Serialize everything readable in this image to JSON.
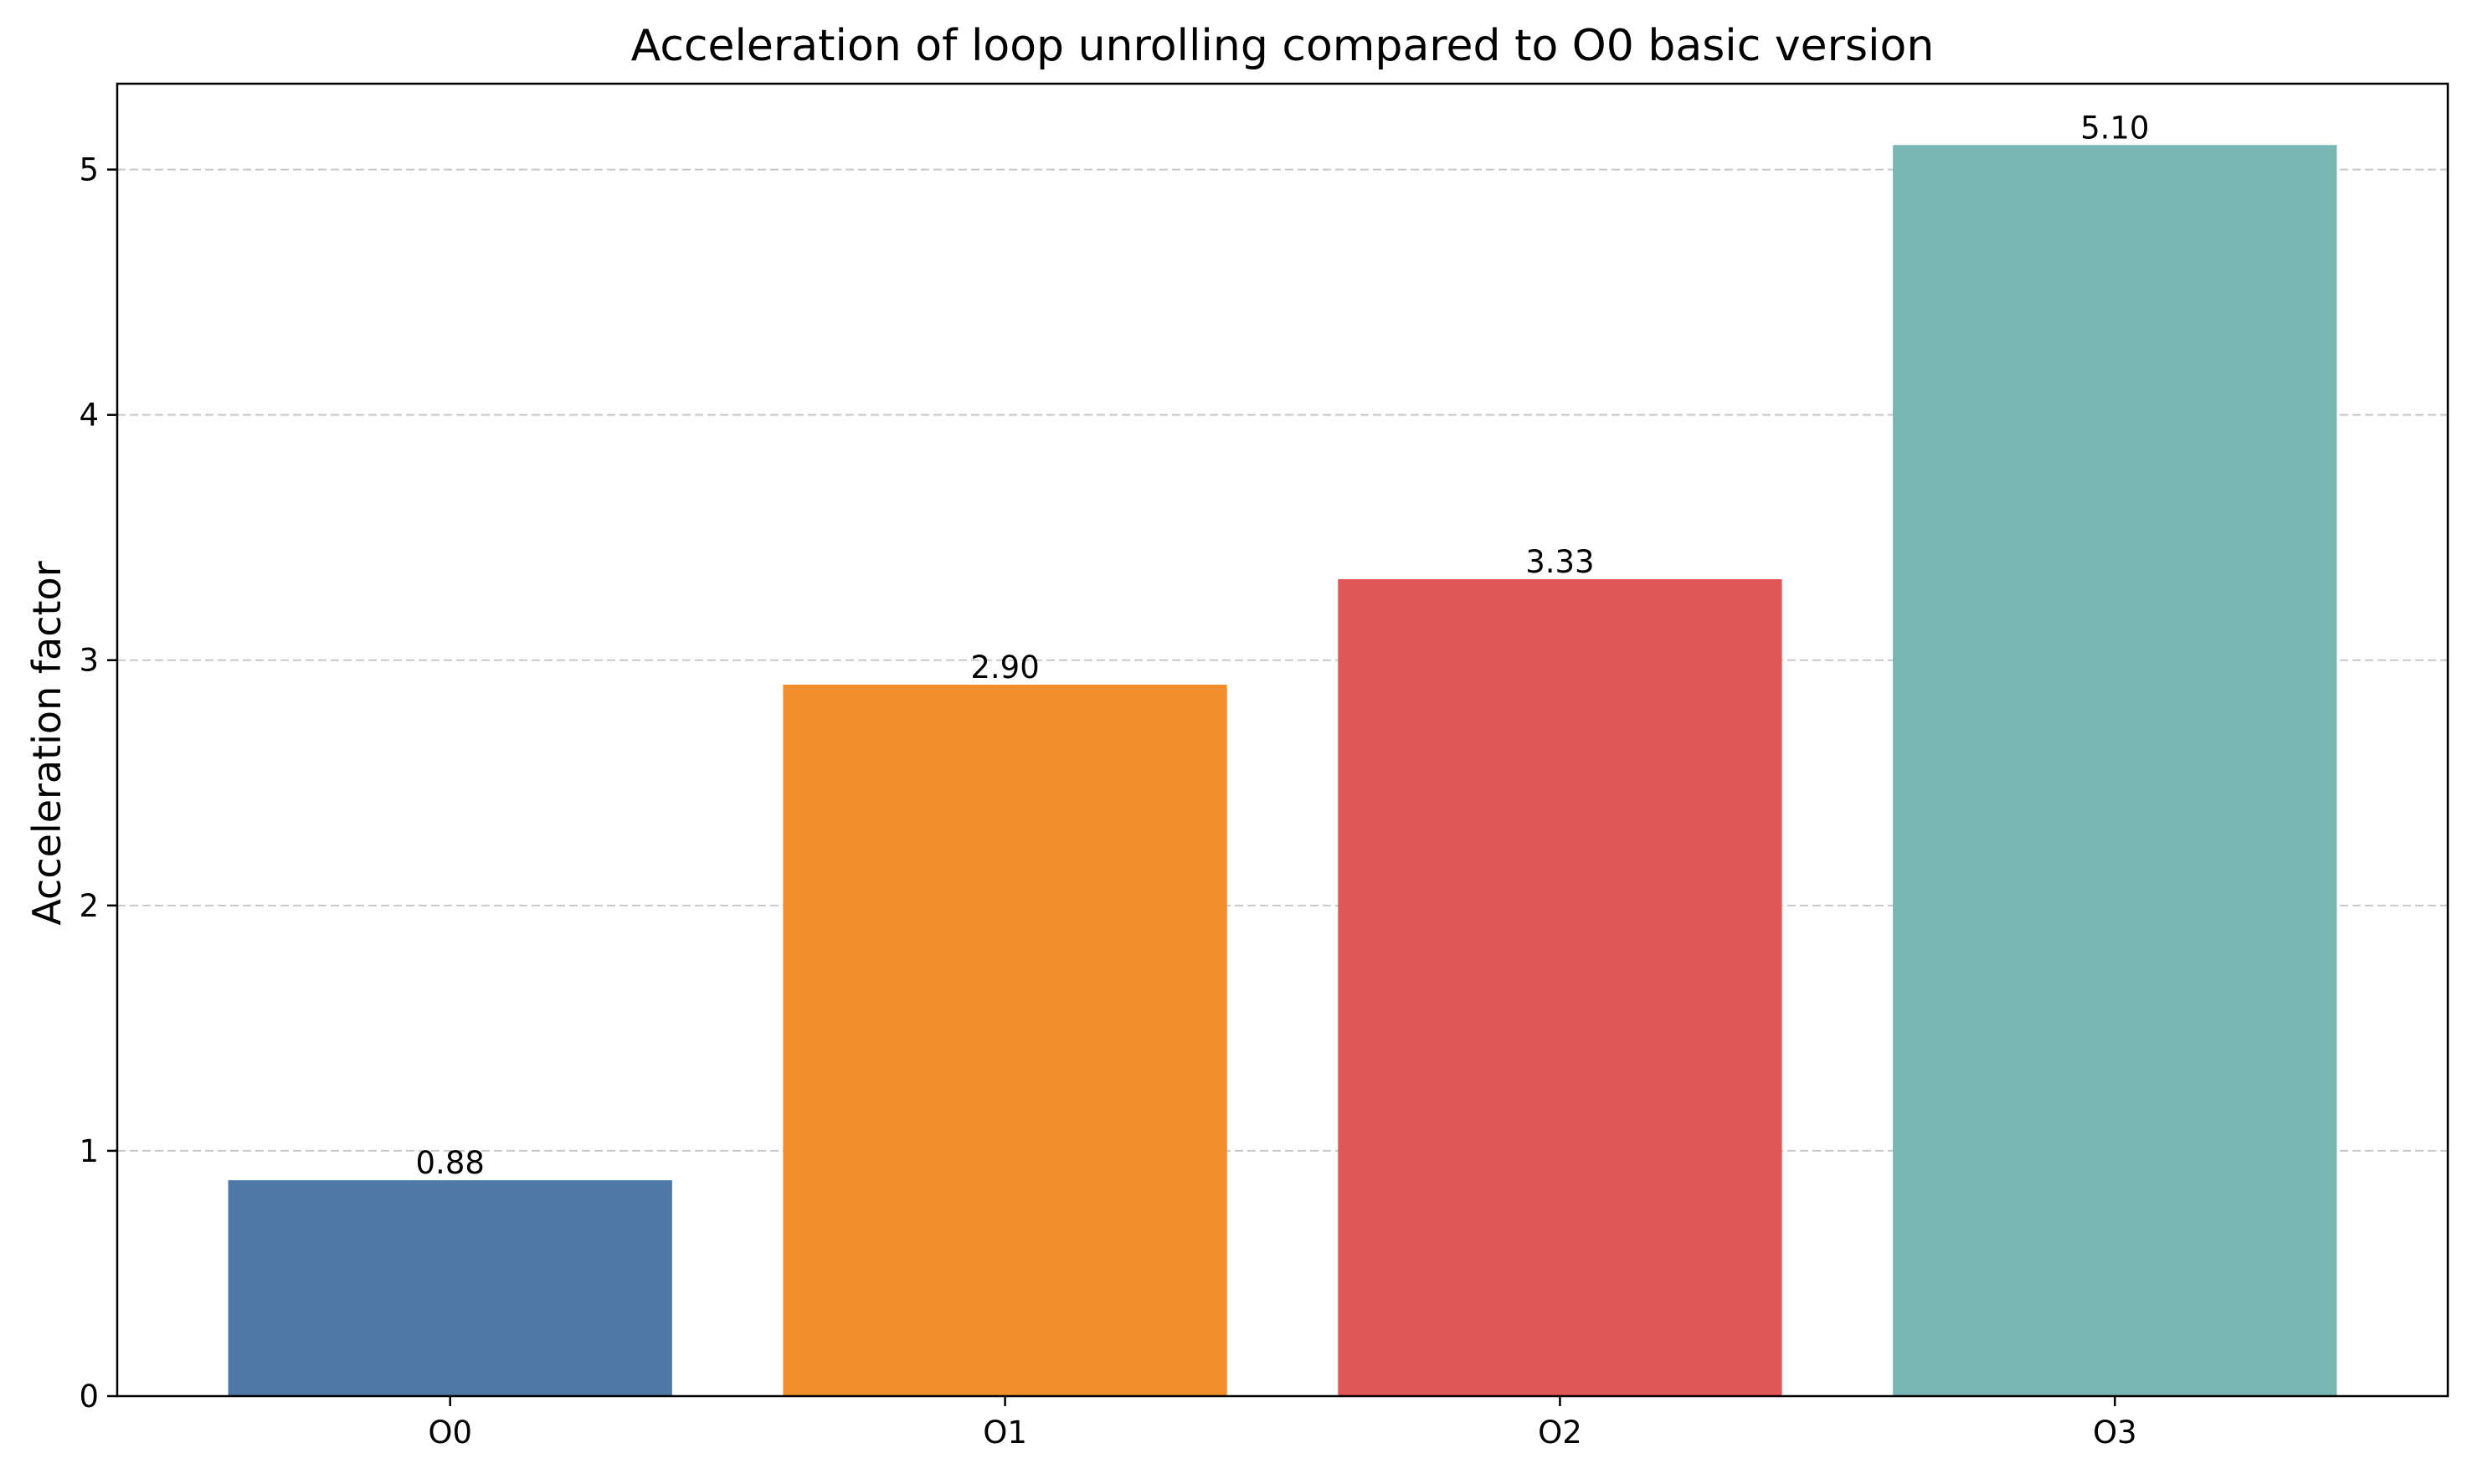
{
  "chart_data": {
    "type": "bar",
    "title": "Acceleration of loop unrolling compared to O0 basic version",
    "xlabel": "",
    "ylabel": "Acceleration factor",
    "categories": [
      "O0",
      "O1",
      "O2",
      "O3"
    ],
    "values": [
      0.88,
      2.9,
      3.33,
      5.1
    ],
    "data_labels": [
      "0.88",
      "2.90",
      "3.33",
      "5.10"
    ],
    "colors": [
      "#4e79a7",
      "#f28e2b",
      "#e15759",
      "#76b7b2"
    ],
    "ylim": [
      0,
      5.35
    ],
    "yticks": [
      0,
      1,
      2,
      3,
      4,
      5
    ],
    "ytick_labels": [
      "0",
      "1",
      "2",
      "3",
      "4",
      "5"
    ],
    "grid": "y-dashed",
    "grid_color": "#c8c8c8",
    "legend": "none"
  }
}
